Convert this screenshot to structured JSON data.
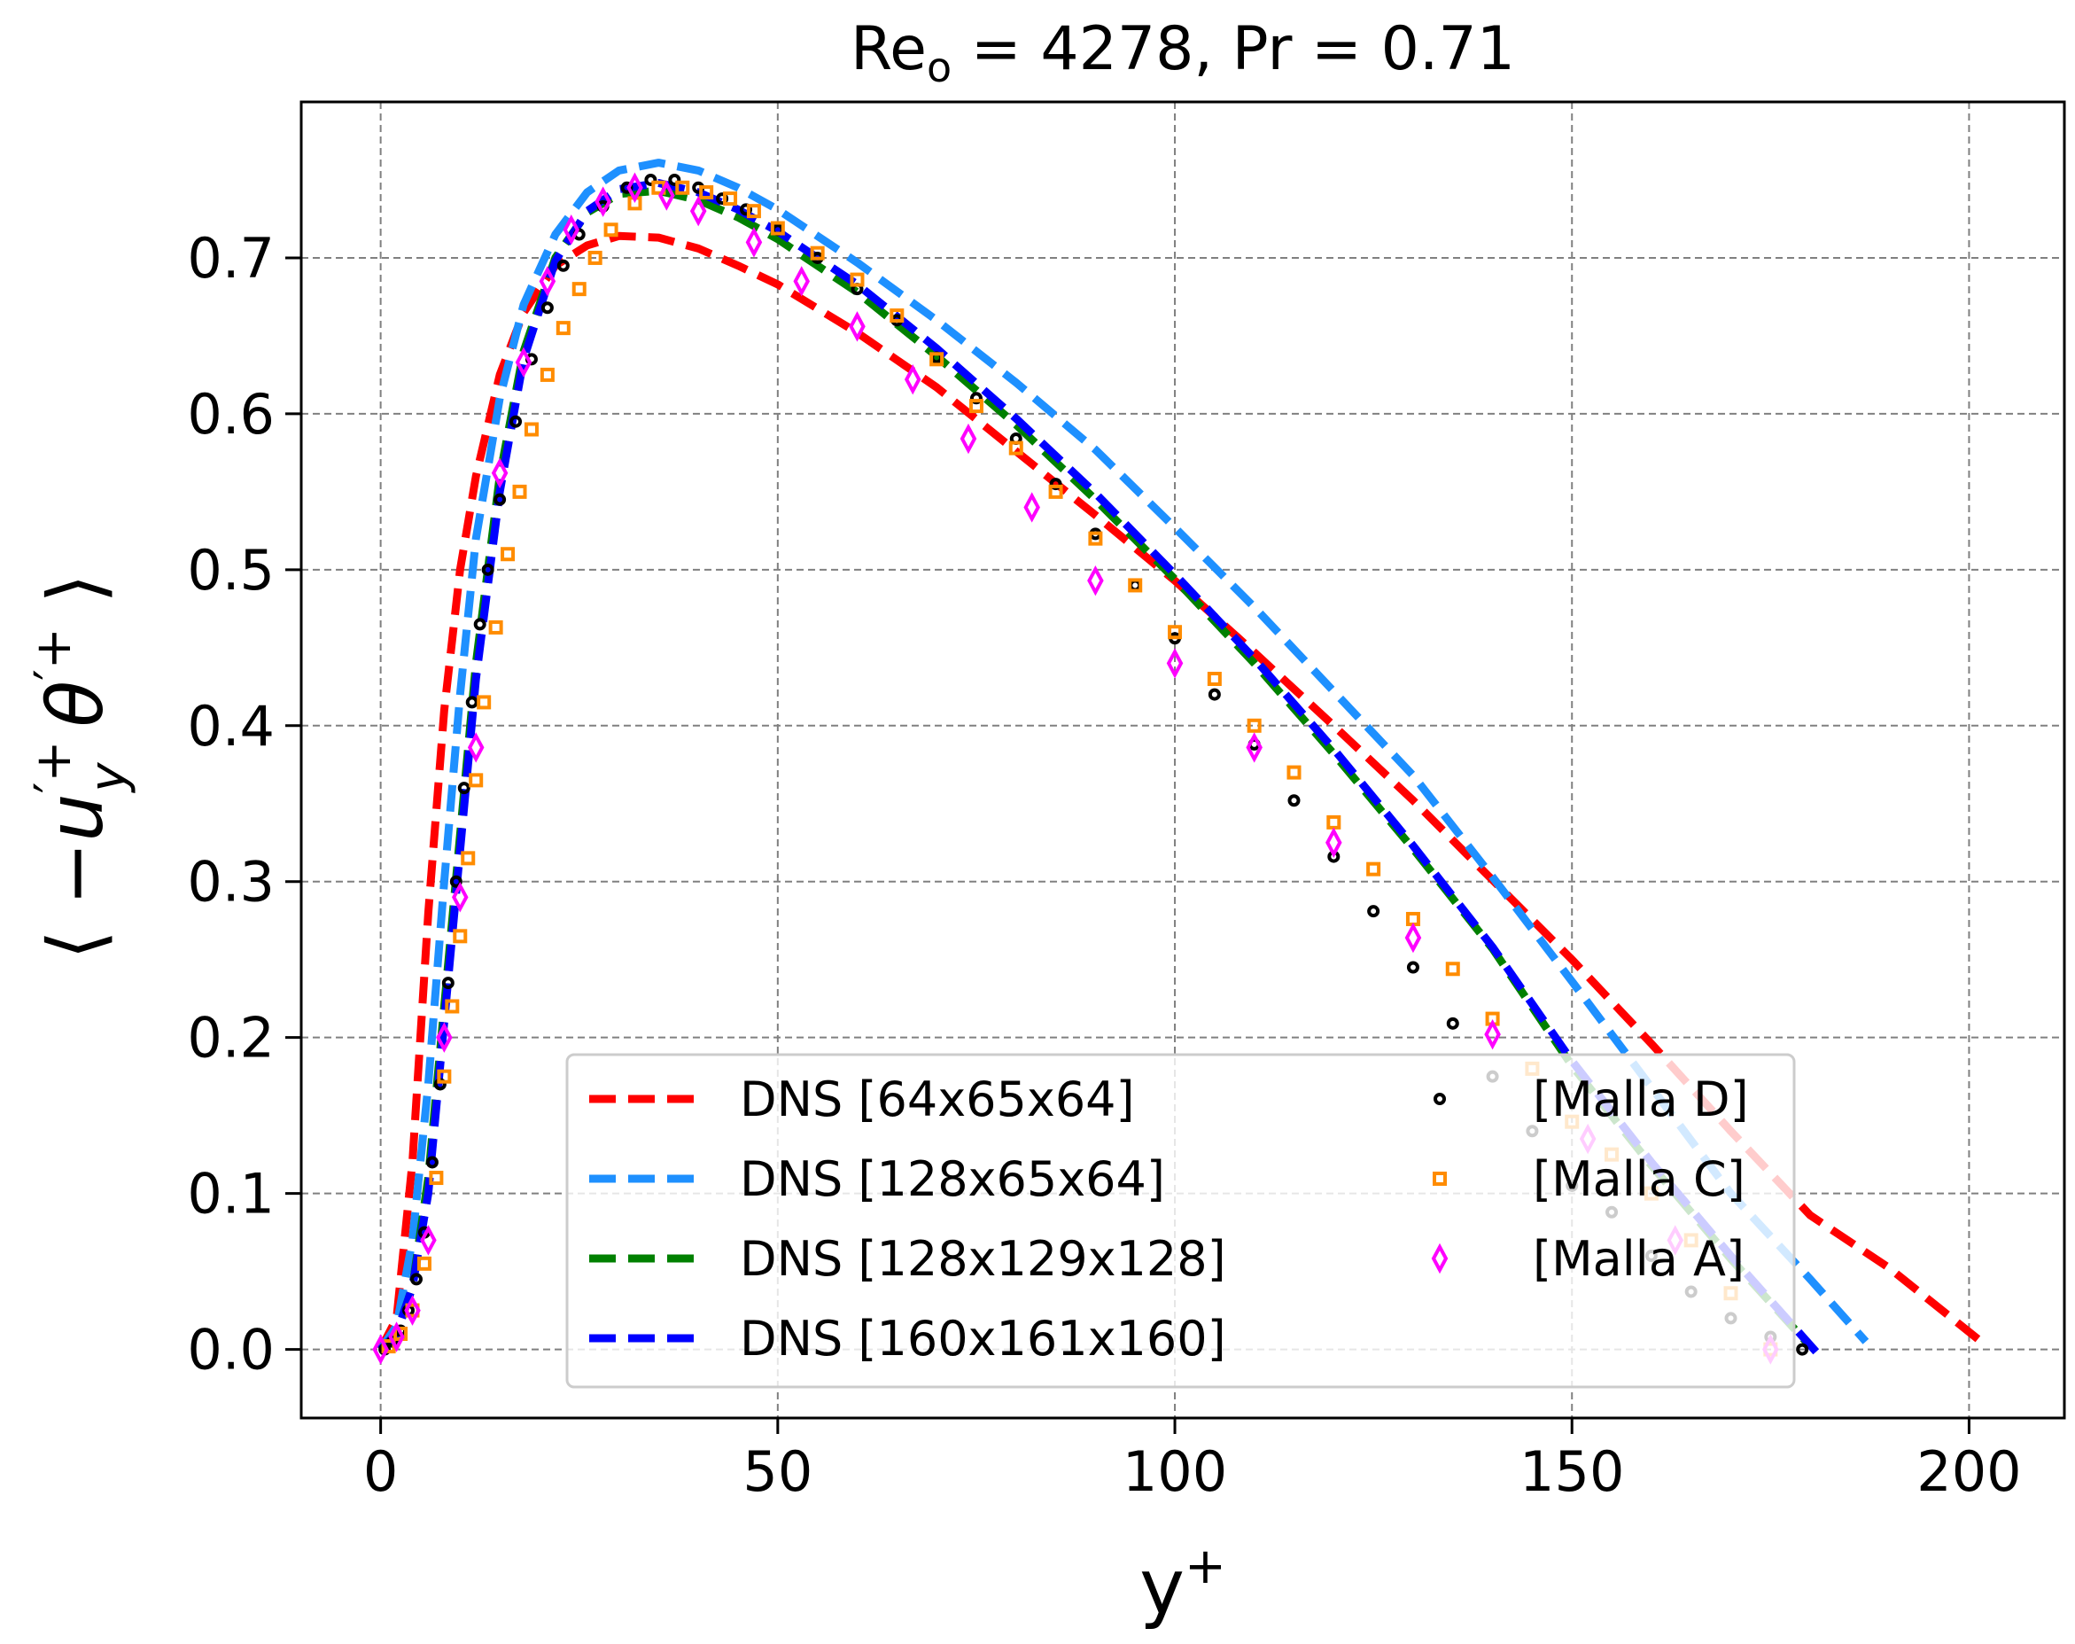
{
  "chart_data": {
    "type": "line",
    "title": "Re_o = 4278, Pr = 0.71",
    "title_parts": {
      "base": "Re",
      "sub": "o",
      "rest": " = 4278, Pr = 0.71"
    },
    "xlabel": "y+",
    "xlabel_parts": {
      "base": "y",
      "sup": "+"
    },
    "ylabel": "⟨ −u'y+ θ'+ ⟩",
    "ylabel_parts": {
      "open": "⟨ −",
      "u": "u",
      "usup": "′+",
      "usub": "y",
      "theta": "θ",
      "tsup": "′+",
      "close": " ⟩"
    },
    "xlim": [
      -10,
      212
    ],
    "ylim": [
      -0.044,
      0.8
    ],
    "x_ticks": [
      0,
      50,
      100,
      150,
      200
    ],
    "x_tick_labels": [
      "0",
      "50",
      "100",
      "150",
      "200"
    ],
    "y_ticks": [
      0.0,
      0.1,
      0.2,
      0.3,
      0.4,
      0.5,
      0.6,
      0.7
    ],
    "y_tick_labels": [
      "0.0",
      "0.1",
      "0.2",
      "0.3",
      "0.4",
      "0.5",
      "0.6",
      "0.7"
    ],
    "grid": true,
    "legend_position": "lower-center",
    "series": [
      {
        "name": "DNS [64x65x64]",
        "kind": "dashed-line",
        "color": "#ff0000",
        "points": [
          [
            0,
            0
          ],
          [
            2,
            0.02
          ],
          [
            4,
            0.12
          ],
          [
            6,
            0.28
          ],
          [
            8,
            0.41
          ],
          [
            10,
            0.5
          ],
          [
            12,
            0.56
          ],
          [
            15,
            0.625
          ],
          [
            18,
            0.665
          ],
          [
            22,
            0.695
          ],
          [
            26,
            0.708
          ],
          [
            30,
            0.714
          ],
          [
            35,
            0.713
          ],
          [
            40,
            0.706
          ],
          [
            45,
            0.695
          ],
          [
            50,
            0.683
          ],
          [
            60,
            0.652
          ],
          [
            70,
            0.617
          ],
          [
            80,
            0.576
          ],
          [
            90,
            0.535
          ],
          [
            100,
            0.493
          ],
          [
            110,
            0.447
          ],
          [
            120,
            0.4
          ],
          [
            130,
            0.352
          ],
          [
            140,
            0.301
          ],
          [
            150,
            0.25
          ],
          [
            160,
            0.196
          ],
          [
            170,
            0.14
          ],
          [
            180,
            0.086
          ],
          [
            190,
            0.052
          ],
          [
            202,
            0.003
          ]
        ]
      },
      {
        "name": "DNS [128x65x64]",
        "kind": "dashed-line",
        "color": "#1e90ff",
        "points": [
          [
            0,
            0
          ],
          [
            2,
            0.015
          ],
          [
            4,
            0.07
          ],
          [
            6,
            0.17
          ],
          [
            8,
            0.3
          ],
          [
            10,
            0.42
          ],
          [
            12,
            0.52
          ],
          [
            15,
            0.61
          ],
          [
            18,
            0.67
          ],
          [
            22,
            0.715
          ],
          [
            26,
            0.742
          ],
          [
            30,
            0.756
          ],
          [
            35,
            0.761
          ],
          [
            40,
            0.756
          ],
          [
            45,
            0.745
          ],
          [
            50,
            0.731
          ],
          [
            60,
            0.697
          ],
          [
            70,
            0.66
          ],
          [
            80,
            0.62
          ],
          [
            90,
            0.577
          ],
          [
            100,
            0.527
          ],
          [
            110,
            0.476
          ],
          [
            120,
            0.422
          ],
          [
            130,
            0.368
          ],
          [
            140,
            0.303
          ],
          [
            150,
            0.236
          ],
          [
            160,
            0.168
          ],
          [
            170,
            0.1
          ],
          [
            180,
            0.045
          ],
          [
            187,
            0.005
          ]
        ]
      },
      {
        "name": "DNS [128x129x128]",
        "kind": "dashed-line",
        "color": "#008000",
        "points": [
          [
            0,
            0
          ],
          [
            2,
            0.01
          ],
          [
            4,
            0.04
          ],
          [
            6,
            0.11
          ],
          [
            8,
            0.22
          ],
          [
            10,
            0.33
          ],
          [
            12,
            0.44
          ],
          [
            15,
            0.56
          ],
          [
            18,
            0.64
          ],
          [
            22,
            0.7
          ],
          [
            26,
            0.729
          ],
          [
            30,
            0.741
          ],
          [
            35,
            0.743
          ],
          [
            40,
            0.737
          ],
          [
            45,
            0.726
          ],
          [
            50,
            0.712
          ],
          [
            60,
            0.678
          ],
          [
            70,
            0.637
          ],
          [
            80,
            0.593
          ],
          [
            90,
            0.545
          ],
          [
            100,
            0.494
          ],
          [
            110,
            0.44
          ],
          [
            120,
            0.382
          ],
          [
            130,
            0.321
          ],
          [
            140,
            0.257
          ],
          [
            150,
            0.182
          ],
          [
            160,
            0.118
          ],
          [
            170,
            0.058
          ],
          [
            180,
            0.002
          ]
        ]
      },
      {
        "name": "DNS [160x161x160]",
        "kind": "dashed-line",
        "color": "#0000ff",
        "points": [
          [
            0,
            0
          ],
          [
            2,
            0.01
          ],
          [
            4,
            0.04
          ],
          [
            6,
            0.1
          ],
          [
            8,
            0.21
          ],
          [
            10,
            0.32
          ],
          [
            12,
            0.43
          ],
          [
            15,
            0.55
          ],
          [
            18,
            0.635
          ],
          [
            22,
            0.698
          ],
          [
            26,
            0.73
          ],
          [
            30,
            0.744
          ],
          [
            35,
            0.748
          ],
          [
            40,
            0.742
          ],
          [
            45,
            0.731
          ],
          [
            50,
            0.717
          ],
          [
            60,
            0.683
          ],
          [
            70,
            0.642
          ],
          [
            80,
            0.597
          ],
          [
            90,
            0.549
          ],
          [
            100,
            0.497
          ],
          [
            110,
            0.443
          ],
          [
            120,
            0.385
          ],
          [
            130,
            0.323
          ],
          [
            140,
            0.258
          ],
          [
            150,
            0.185
          ],
          [
            160,
            0.12
          ],
          [
            170,
            0.06
          ],
          [
            181,
            -0.003
          ]
        ]
      },
      {
        "name": "[Malla D]",
        "kind": "markers",
        "marker": "circle",
        "color": "#000000",
        "points": [
          [
            0.5,
            0.0
          ],
          [
            1.5,
            0.005
          ],
          [
            2.5,
            0.012
          ],
          [
            3.5,
            0.025
          ],
          [
            4.5,
            0.045
          ],
          [
            5.5,
            0.075
          ],
          [
            6.5,
            0.12
          ],
          [
            7.5,
            0.17
          ],
          [
            8.5,
            0.235
          ],
          [
            9.5,
            0.3
          ],
          [
            10.5,
            0.36
          ],
          [
            11.5,
            0.415
          ],
          [
            12.5,
            0.465
          ],
          [
            13.5,
            0.5
          ],
          [
            15,
            0.545
          ],
          [
            17,
            0.595
          ],
          [
            19,
            0.635
          ],
          [
            21,
            0.668
          ],
          [
            23,
            0.695
          ],
          [
            25,
            0.715
          ],
          [
            28,
            0.733
          ],
          [
            31,
            0.745
          ],
          [
            34,
            0.75
          ],
          [
            37,
            0.75
          ],
          [
            40,
            0.745
          ],
          [
            43,
            0.738
          ],
          [
            46,
            0.731
          ],
          [
            50,
            0.718
          ],
          [
            55,
            0.7
          ],
          [
            60,
            0.68
          ],
          [
            65,
            0.66
          ],
          [
            70,
            0.636
          ],
          [
            75,
            0.61
          ],
          [
            80,
            0.584
          ],
          [
            85,
            0.555
          ],
          [
            90,
            0.523
          ],
          [
            95,
            0.49
          ],
          [
            100,
            0.456
          ],
          [
            105,
            0.42
          ],
          [
            110,
            0.388
          ],
          [
            115,
            0.352
          ],
          [
            120,
            0.316
          ],
          [
            125,
            0.281
          ],
          [
            130,
            0.245
          ],
          [
            135,
            0.209
          ],
          [
            140,
            0.175
          ],
          [
            145,
            0.14
          ],
          [
            150,
            0.105
          ],
          [
            155,
            0.088
          ],
          [
            160,
            0.06
          ],
          [
            165,
            0.037
          ],
          [
            170,
            0.02
          ],
          [
            175,
            0.008
          ],
          [
            179,
            0.0
          ]
        ]
      },
      {
        "name": "[Malla C]",
        "kind": "markers",
        "marker": "square",
        "color": "#ff8c00",
        "points": [
          [
            1,
            0.002
          ],
          [
            2.5,
            0.01
          ],
          [
            4,
            0.025
          ],
          [
            5.5,
            0.055
          ],
          [
            7,
            0.11
          ],
          [
            8,
            0.175
          ],
          [
            9,
            0.22
          ],
          [
            10,
            0.265
          ],
          [
            11,
            0.315
          ],
          [
            12,
            0.365
          ],
          [
            13,
            0.415
          ],
          [
            14.5,
            0.463
          ],
          [
            16,
            0.51
          ],
          [
            17.5,
            0.55
          ],
          [
            19,
            0.59
          ],
          [
            21,
            0.625
          ],
          [
            23,
            0.655
          ],
          [
            25,
            0.68
          ],
          [
            27,
            0.7
          ],
          [
            29,
            0.718
          ],
          [
            32,
            0.735
          ],
          [
            35,
            0.745
          ],
          [
            38,
            0.745
          ],
          [
            41,
            0.742
          ],
          [
            44,
            0.738
          ],
          [
            47,
            0.73
          ],
          [
            50,
            0.719
          ],
          [
            55,
            0.703
          ],
          [
            60,
            0.686
          ],
          [
            65,
            0.663
          ],
          [
            70,
            0.635
          ],
          [
            75,
            0.605
          ],
          [
            80,
            0.578
          ],
          [
            85,
            0.55
          ],
          [
            90,
            0.52
          ],
          [
            95,
            0.49
          ],
          [
            100,
            0.46
          ],
          [
            105,
            0.43
          ],
          [
            110,
            0.4
          ],
          [
            115,
            0.37
          ],
          [
            120,
            0.338
          ],
          [
            125,
            0.308
          ],
          [
            130,
            0.276
          ],
          [
            135,
            0.244
          ],
          [
            140,
            0.212
          ],
          [
            145,
            0.18
          ],
          [
            150,
            0.146
          ],
          [
            155,
            0.125
          ],
          [
            160,
            0.1
          ],
          [
            165,
            0.07
          ],
          [
            170,
            0.036
          ],
          [
            175,
            0.0
          ]
        ]
      },
      {
        "name": "[Malla A]",
        "kind": "markers",
        "marker": "diamond",
        "color": "#ff00ff",
        "points": [
          [
            0,
            0.0
          ],
          [
            2,
            0.008
          ],
          [
            4,
            0.025
          ],
          [
            6,
            0.07
          ],
          [
            8,
            0.2
          ],
          [
            10,
            0.29
          ],
          [
            12,
            0.386
          ],
          [
            15,
            0.562
          ],
          [
            18,
            0.633
          ],
          [
            21,
            0.685
          ],
          [
            24,
            0.718
          ],
          [
            28,
            0.736
          ],
          [
            32,
            0.745
          ],
          [
            36,
            0.74
          ],
          [
            40,
            0.73
          ],
          [
            47,
            0.71
          ],
          [
            53,
            0.685
          ],
          [
            60,
            0.656
          ],
          [
            67,
            0.622
          ],
          [
            74,
            0.584
          ],
          [
            82,
            0.54
          ],
          [
            90,
            0.493
          ],
          [
            100,
            0.44
          ],
          [
            110,
            0.386
          ],
          [
            120,
            0.325
          ],
          [
            130,
            0.264
          ],
          [
            140,
            0.202
          ],
          [
            152,
            0.135
          ],
          [
            163,
            0.07
          ],
          [
            175,
            0.0
          ]
        ]
      }
    ]
  }
}
